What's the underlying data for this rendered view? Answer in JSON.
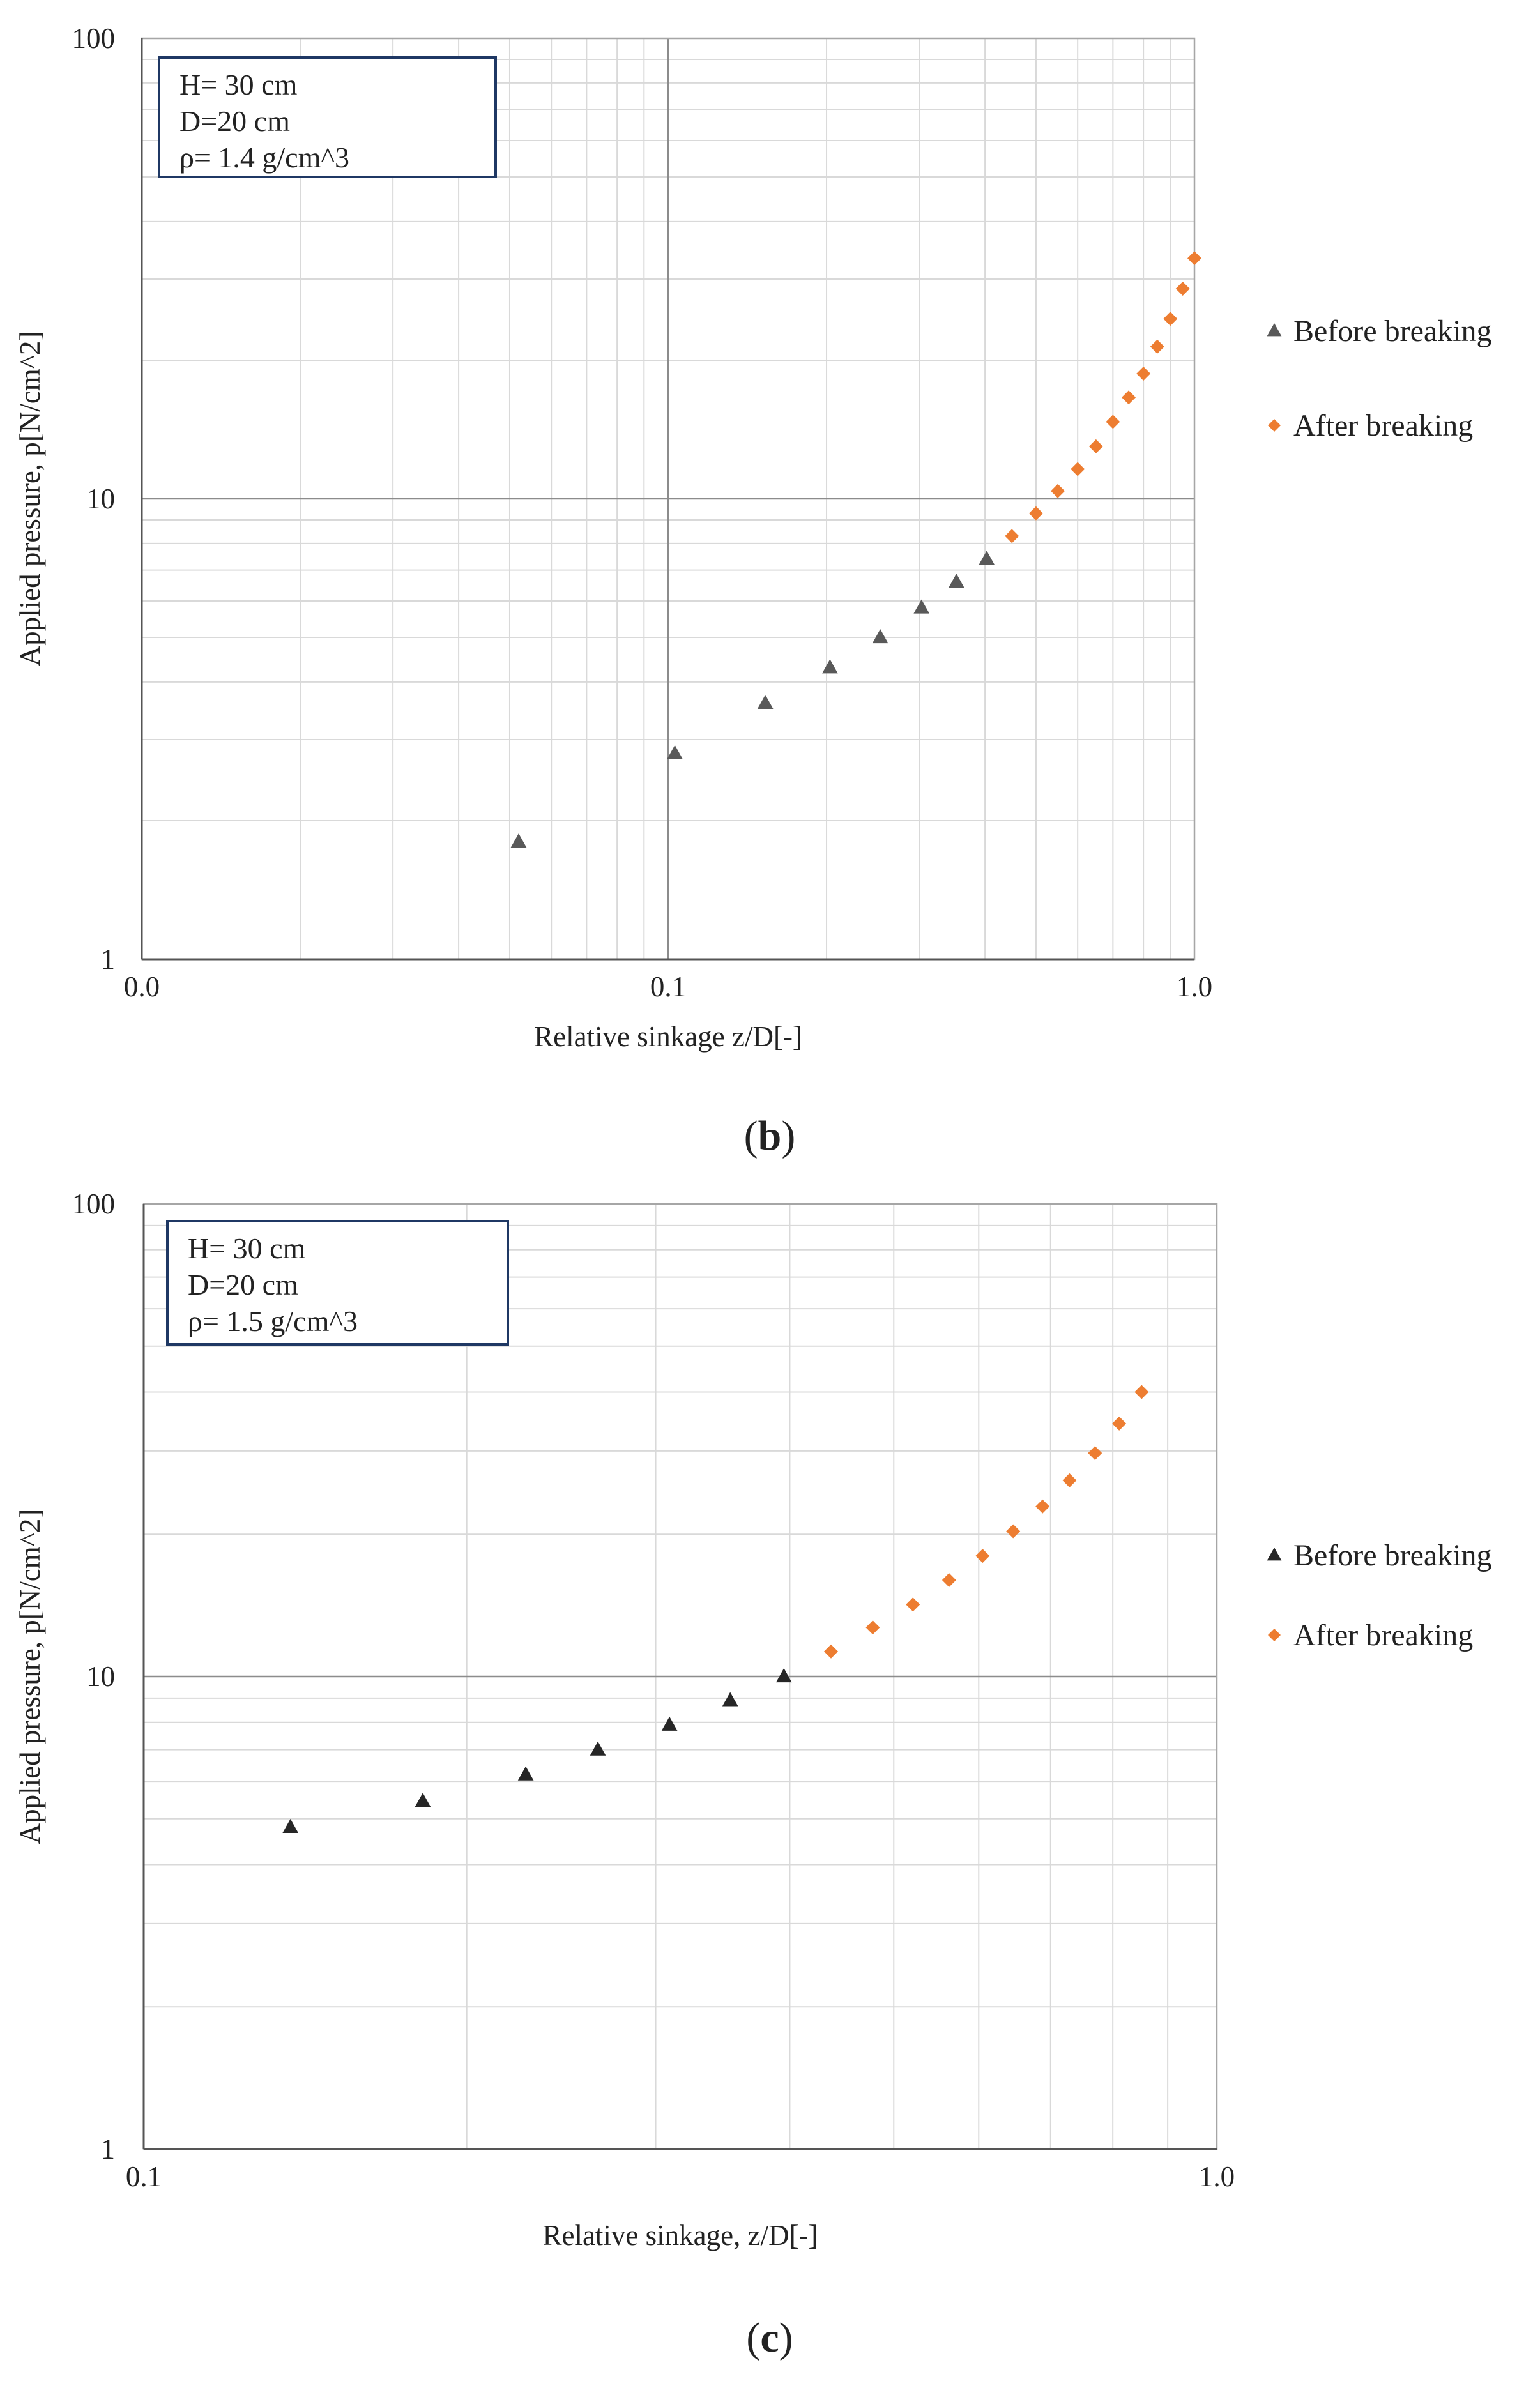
{
  "chart_data": [
    {
      "type": "scatter",
      "panel_label": "b",
      "xscale": "log",
      "yscale": "log",
      "xlim": [
        0.01,
        1.0
      ],
      "ylim": [
        1,
        100
      ],
      "xticks": [
        0.01,
        0.1,
        1.0
      ],
      "xtick_labels": [
        "0.0",
        "0.1",
        "1.0"
      ],
      "yticks": [
        1,
        10,
        100
      ],
      "ytick_labels": [
        "1",
        "10",
        "100"
      ],
      "xlabel": "Relative sinkage z/D[-]",
      "ylabel": "Applied pressure, p[N/cm^2]",
      "info": [
        "H= 30 cm",
        "D=20 cm",
        "ρ= 1.4 g/cm^3"
      ],
      "series": [
        {
          "name": "Before breaking",
          "marker": "triangle",
          "color": "#595959",
          "x": [
            0.052,
            0.103,
            0.153,
            0.203,
            0.253,
            0.303,
            0.353,
            0.403
          ],
          "y": [
            1.8,
            2.8,
            3.6,
            4.3,
            5.0,
            5.8,
            6.6,
            7.4
          ]
        },
        {
          "name": "After breaking",
          "marker": "diamond",
          "color": "#ed7d31",
          "x": [
            0.45,
            0.5,
            0.55,
            0.6,
            0.65,
            0.7,
            0.75,
            0.8,
            0.85,
            0.9,
            0.95,
            1.0
          ],
          "y": [
            8.3,
            9.3,
            10.4,
            11.6,
            13.0,
            14.7,
            16.6,
            18.7,
            21.4,
            24.6,
            28.6,
            33.3
          ]
        }
      ]
    },
    {
      "type": "scatter",
      "panel_label": "c",
      "xscale": "log",
      "yscale": "log",
      "xlim": [
        0.1,
        1.0
      ],
      "ylim": [
        1,
        100
      ],
      "xticks": [
        0.1,
        1.0
      ],
      "xtick_labels": [
        "0.1",
        "1.0"
      ],
      "yticks": [
        1,
        10,
        100
      ],
      "ytick_labels": [
        "1",
        "10",
        "100"
      ],
      "xlabel": "Relative sinkage, z/D[-]",
      "ylabel": "Applied pressure, p[N/cm^2]",
      "info": [
        "H= 30 cm",
        "D=20 cm",
        "ρ= 1.5 g/cm^3"
      ],
      "series": [
        {
          "name": "Before breaking",
          "marker": "triangle",
          "color": "#262626",
          "x": [
            0.137,
            0.182,
            0.227,
            0.265,
            0.309,
            0.352,
            0.395
          ],
          "y": [
            4.8,
            5.45,
            6.2,
            7.0,
            7.9,
            8.9,
            10.0
          ]
        },
        {
          "name": "After breaking",
          "marker": "diamond",
          "color": "#ed7d31",
          "x": [
            0.437,
            0.478,
            0.521,
            0.563,
            0.605,
            0.646,
            0.688,
            0.729,
            0.77,
            0.811,
            0.851
          ],
          "y": [
            11.3,
            12.7,
            14.2,
            16.0,
            18.0,
            20.3,
            22.9,
            26.0,
            29.7,
            34.3,
            40.0
          ]
        }
      ]
    }
  ]
}
